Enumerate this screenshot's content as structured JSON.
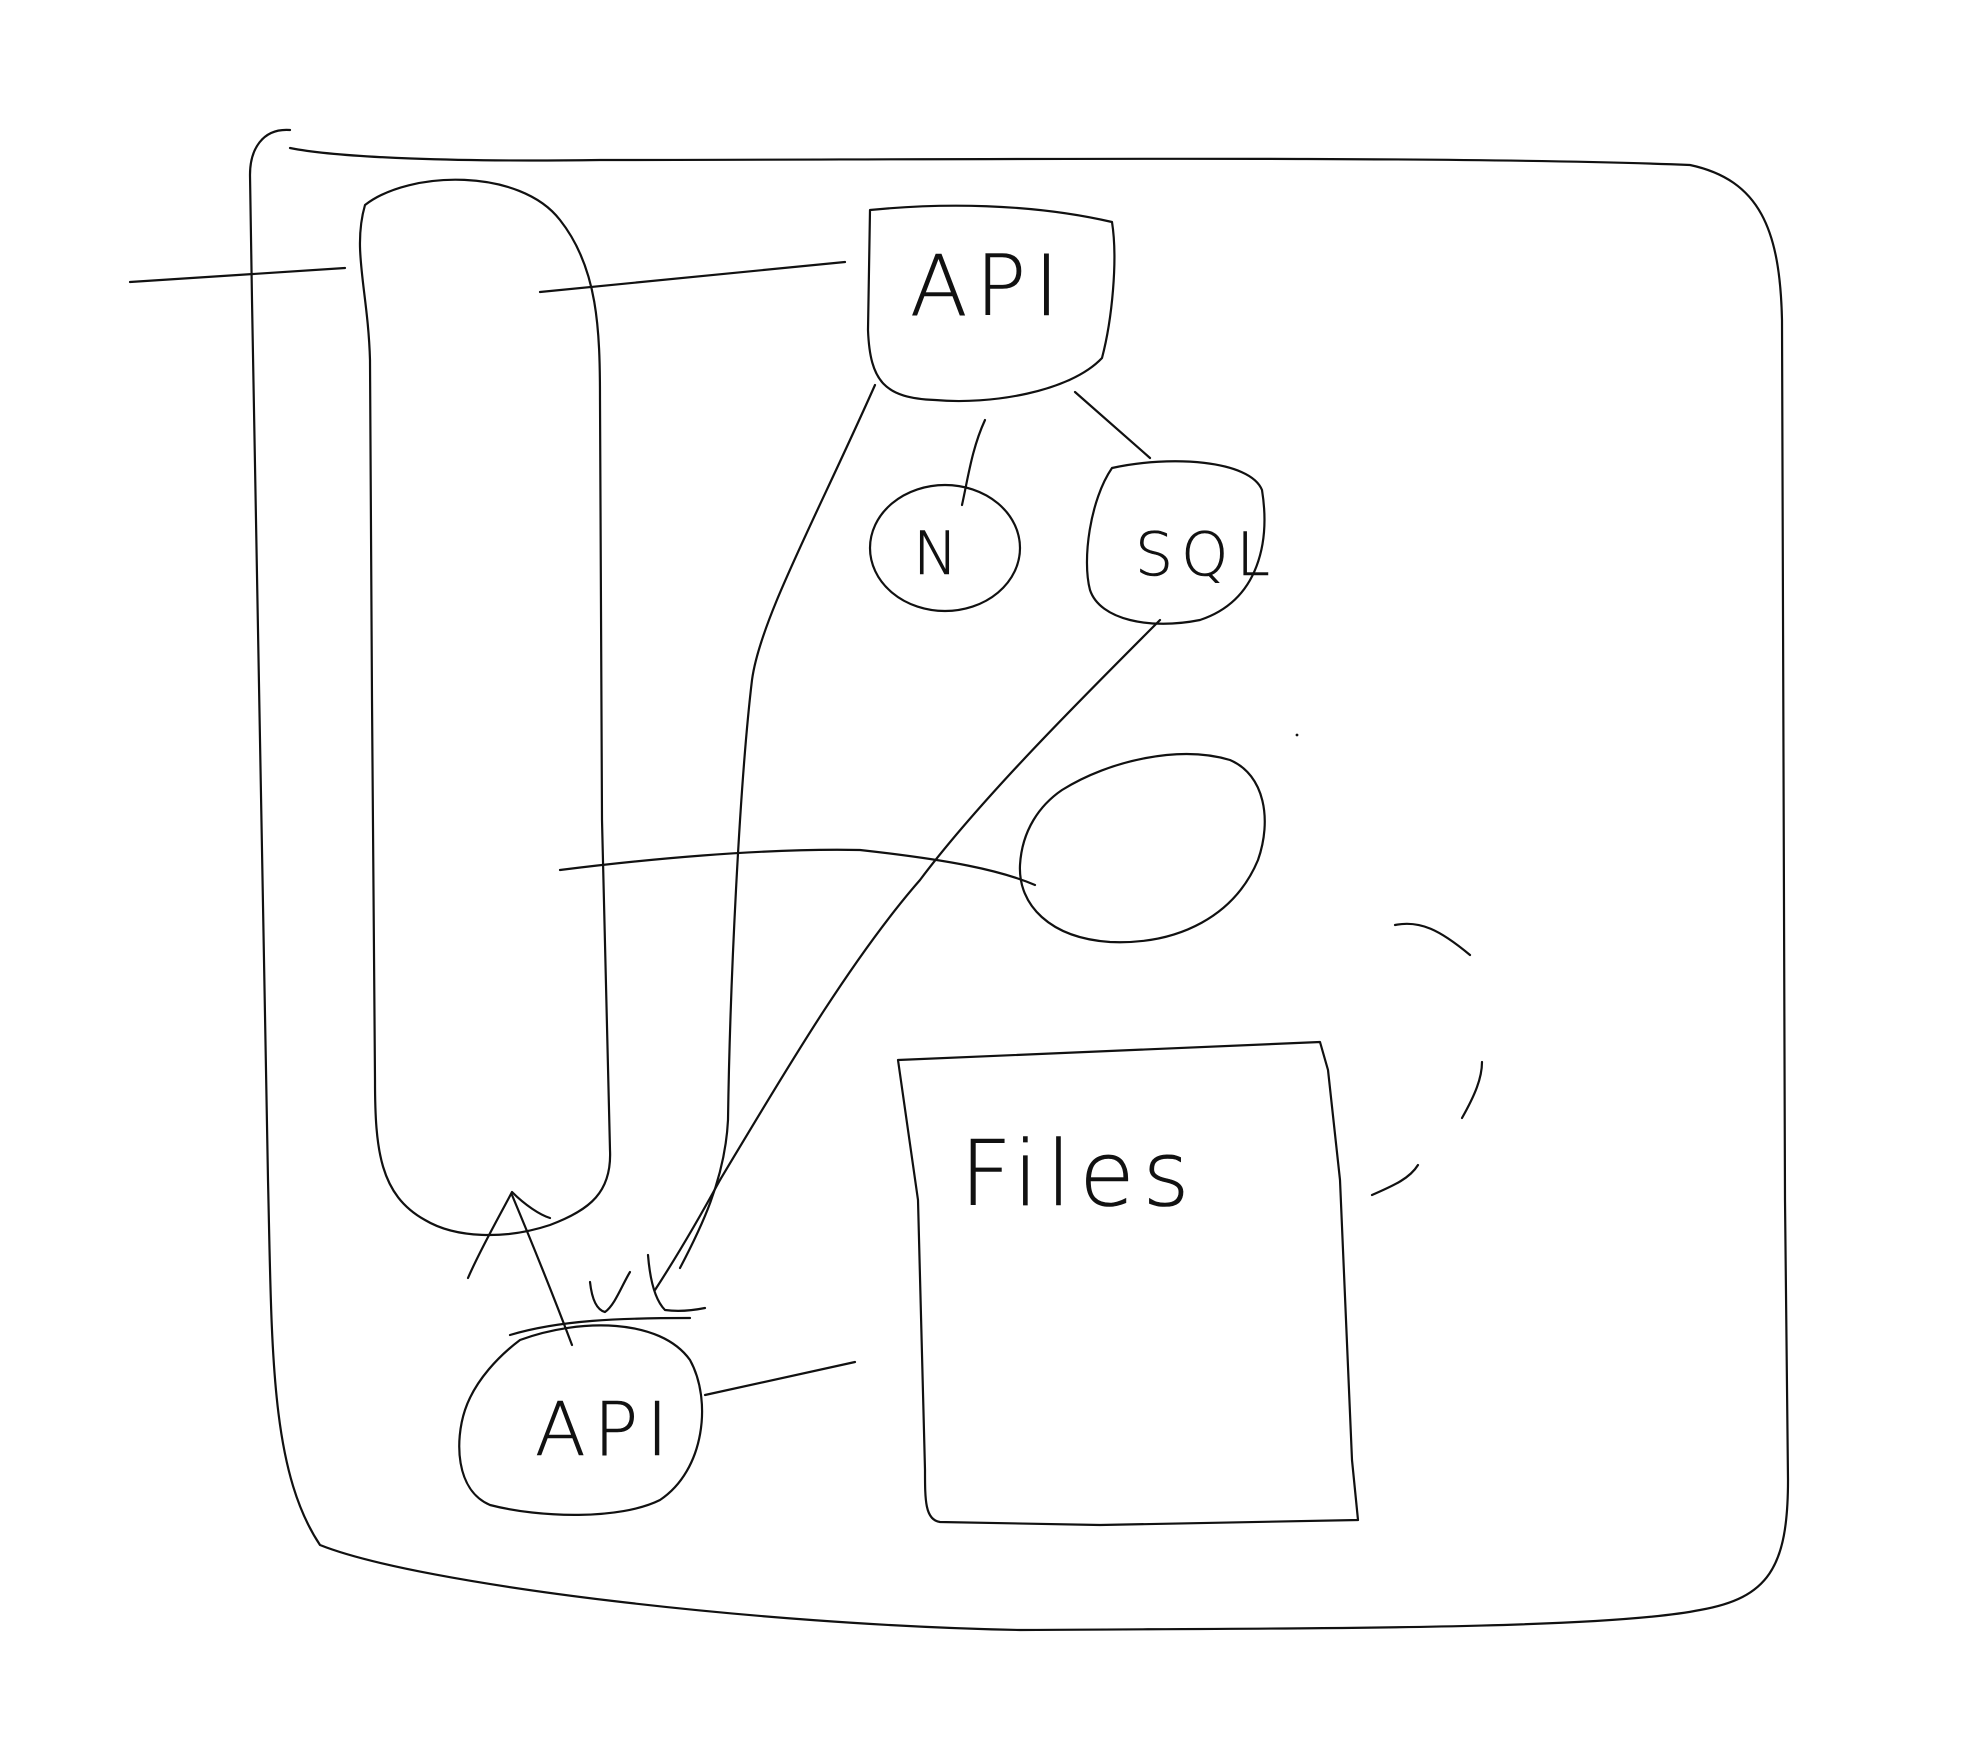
{
  "diagram": {
    "nodes": {
      "api_top": {
        "label": "API"
      },
      "n": {
        "label": "N"
      },
      "sql": {
        "label": "SQL"
      },
      "files": {
        "label": "Files"
      },
      "api_bottom": {
        "label": "API"
      }
    },
    "ink_color": "#111111",
    "background": "#ffffff"
  }
}
